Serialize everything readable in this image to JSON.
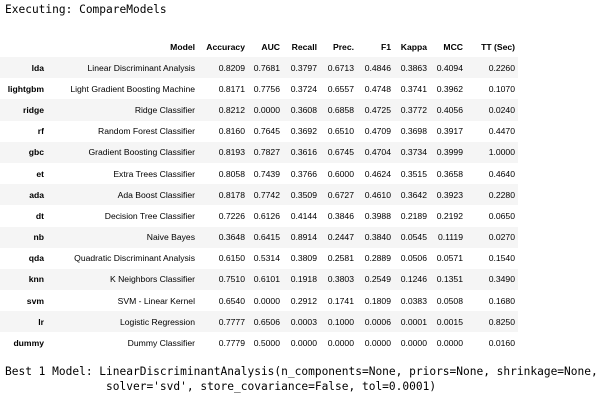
{
  "executing": "Executing: CompareModels",
  "table": {
    "columns": [
      "Model",
      "Accuracy",
      "AUC",
      "Recall",
      "Prec.",
      "F1",
      "Kappa",
      "MCC",
      "TT (Sec)"
    ],
    "rows": [
      {
        "index": "lda",
        "cells": [
          "Linear Discriminant Analysis",
          "0.8209",
          "0.7681",
          "0.3797",
          "0.6713",
          "0.4846",
          "0.3863",
          "0.4094",
          "0.2260"
        ]
      },
      {
        "index": "lightgbm",
        "cells": [
          "Light Gradient Boosting Machine",
          "0.8171",
          "0.7756",
          "0.3724",
          "0.6557",
          "0.4748",
          "0.3741",
          "0.3962",
          "0.1070"
        ]
      },
      {
        "index": "ridge",
        "cells": [
          "Ridge Classifier",
          "0.8212",
          "0.0000",
          "0.3608",
          "0.6858",
          "0.4725",
          "0.3772",
          "0.4056",
          "0.0240"
        ]
      },
      {
        "index": "rf",
        "cells": [
          "Random Forest Classifier",
          "0.8160",
          "0.7645",
          "0.3692",
          "0.6510",
          "0.4709",
          "0.3698",
          "0.3917",
          "0.4470"
        ]
      },
      {
        "index": "gbc",
        "cells": [
          "Gradient Boosting Classifier",
          "0.8193",
          "0.7827",
          "0.3616",
          "0.6745",
          "0.4704",
          "0.3734",
          "0.3999",
          "1.0000"
        ]
      },
      {
        "index": "et",
        "cells": [
          "Extra Trees Classifier",
          "0.8058",
          "0.7439",
          "0.3766",
          "0.6000",
          "0.4624",
          "0.3515",
          "0.3658",
          "0.4640"
        ]
      },
      {
        "index": "ada",
        "cells": [
          "Ada Boost Classifier",
          "0.8178",
          "0.7742",
          "0.3509",
          "0.6727",
          "0.4610",
          "0.3642",
          "0.3923",
          "0.2280"
        ]
      },
      {
        "index": "dt",
        "cells": [
          "Decision Tree Classifier",
          "0.7226",
          "0.6126",
          "0.4144",
          "0.3846",
          "0.3988",
          "0.2189",
          "0.2192",
          "0.0650"
        ]
      },
      {
        "index": "nb",
        "cells": [
          "Naive Bayes",
          "0.3648",
          "0.6415",
          "0.8914",
          "0.2447",
          "0.3840",
          "0.0545",
          "0.1119",
          "0.0270"
        ]
      },
      {
        "index": "qda",
        "cells": [
          "Quadratic Discriminant Analysis",
          "0.6150",
          "0.5314",
          "0.3809",
          "0.2581",
          "0.2889",
          "0.0506",
          "0.0571",
          "0.1540"
        ]
      },
      {
        "index": "knn",
        "cells": [
          "K Neighbors Classifier",
          "0.7510",
          "0.6101",
          "0.1918",
          "0.3803",
          "0.2549",
          "0.1246",
          "0.1351",
          "0.3490"
        ]
      },
      {
        "index": "svm",
        "cells": [
          "SVM - Linear Kernel",
          "0.6540",
          "0.0000",
          "0.2912",
          "0.1741",
          "0.1809",
          "0.0383",
          "0.0508",
          "0.1680"
        ]
      },
      {
        "index": "lr",
        "cells": [
          "Logistic Regression",
          "0.7777",
          "0.6506",
          "0.0003",
          "0.1000",
          "0.0006",
          "0.0001",
          "0.0015",
          "0.8250"
        ]
      },
      {
        "index": "dummy",
        "cells": [
          "Dummy Classifier",
          "0.7779",
          "0.5000",
          "0.0000",
          "0.0000",
          "0.0000",
          "0.0000",
          "0.0000",
          "0.0160"
        ]
      }
    ]
  },
  "best_model_line1": "Best 1 Model: LinearDiscriminantAnalysis(n_components=None, priors=None, shrinkage=None,",
  "best_model_line2": "               solver='svd', store_covariance=False, tol=0.0001)"
}
